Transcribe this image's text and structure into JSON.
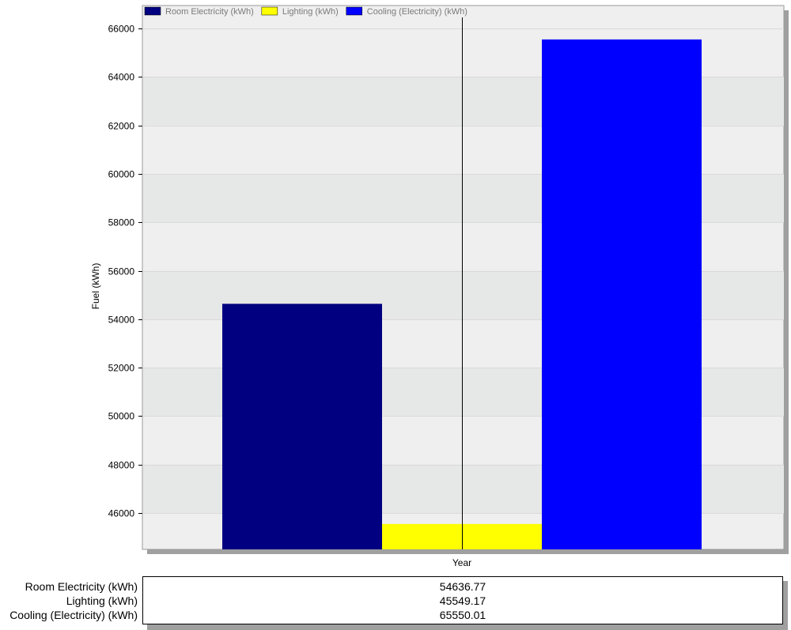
{
  "chart_data": {
    "type": "bar",
    "x_label": "Year",
    "y_label": "Fuel (kWh)",
    "y_range": [
      44500,
      66950
    ],
    "y_ticks": [
      46000,
      48000,
      50000,
      52000,
      54000,
      56000,
      58000,
      60000,
      62000,
      64000,
      66000
    ],
    "grid": "horizontal, alternating bands",
    "legend_position": "top",
    "series": [
      {
        "name": "Room Electricity (kWh)",
        "value": 54636.77,
        "color": "#000080"
      },
      {
        "name": "Lighting (kWh)",
        "value": 45549.17,
        "color": "#ffff00"
      },
      {
        "name": "Cooling (Electricity) (kWh)",
        "value": 65550.01,
        "color": "#0000ff"
      }
    ]
  },
  "table": {
    "rows": [
      {
        "label": "Room Electricity (kWh)",
        "value": "54636.77"
      },
      {
        "label": "Lighting (kWh)",
        "value": "45549.17"
      },
      {
        "label": "Cooling (Electricity) (kWh)",
        "value": "65550.01"
      }
    ]
  }
}
